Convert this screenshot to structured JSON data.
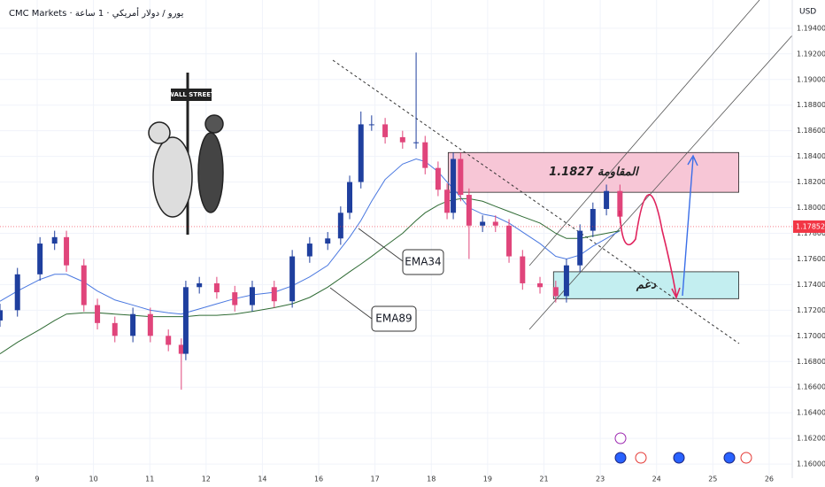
{
  "chart_data": {
    "type": "candlestick",
    "header": "CMC Markets · يورو / دولار أمريكي · 1 ساعة",
    "currency": "USD",
    "illustration_sign": "WALL STREET",
    "up_color": "#1f3f9e",
    "down_color": "#e0457b",
    "grid": true,
    "xlim": [
      -0.66,
      13.41
    ],
    "ylim": [
      1.1589,
      1.1962
    ],
    "xticks": [
      {
        "value": 0,
        "label": "9"
      },
      {
        "value": 1,
        "label": "10"
      },
      {
        "value": 2,
        "label": "11"
      },
      {
        "value": 3,
        "label": "12"
      },
      {
        "value": 4,
        "label": "14"
      },
      {
        "value": 5,
        "label": "16"
      },
      {
        "value": 6,
        "label": "17"
      },
      {
        "value": 7,
        "label": "18"
      },
      {
        "value": 8,
        "label": "19"
      },
      {
        "value": 9,
        "label": "21"
      },
      {
        "value": 10,
        "label": "23"
      },
      {
        "value": 11,
        "label": "24"
      },
      {
        "value": 12,
        "label": "25"
      },
      {
        "value": 13,
        "label": "26"
      }
    ],
    "yticks": [
      {
        "value": 1.16,
        "label": "1.16000"
      },
      {
        "value": 1.162,
        "label": "1.16200"
      },
      {
        "value": 1.164,
        "label": "1.16400"
      },
      {
        "value": 1.166,
        "label": "1.16600"
      },
      {
        "value": 1.168,
        "label": "1.16800"
      },
      {
        "value": 1.17,
        "label": "1.17000"
      },
      {
        "value": 1.172,
        "label": "1.17200"
      },
      {
        "value": 1.174,
        "label": "1.17400"
      },
      {
        "value": 1.176,
        "label": "1.17600"
      },
      {
        "value": 1.178,
        "label": "1.17800"
      },
      {
        "value": 1.18,
        "label": "1.18000"
      },
      {
        "value": 1.182,
        "label": "1.18200"
      },
      {
        "value": 1.184,
        "label": "1.18400"
      },
      {
        "value": 1.186,
        "label": "1.18600"
      },
      {
        "value": 1.188,
        "label": "1.18800"
      },
      {
        "value": 1.19,
        "label": "1.19000"
      },
      {
        "value": 1.192,
        "label": "1.19200"
      },
      {
        "value": 1.194,
        "label": "1.19400"
      }
    ],
    "last_price": {
      "value": 1.17852,
      "label": "1.17852",
      "color": "#f23645"
    },
    "x": [
      -0.66,
      -0.35,
      0.05,
      0.31,
      0.52,
      0.83,
      1.07,
      1.38,
      1.7,
      2.01,
      2.33,
      2.56,
      2.64,
      2.88,
      3.19,
      3.51,
      3.82,
      4.21,
      4.53,
      4.84,
      5.16,
      5.39,
      5.55,
      5.75,
      5.94,
      6.18,
      6.49,
      6.73,
      6.89,
      7.12,
      7.28,
      7.39,
      7.52,
      7.67,
      7.91,
      8.14,
      8.38,
      8.62,
      8.93,
      9.21,
      9.4,
      9.64,
      9.87,
      10.11,
      10.35
    ],
    "open": [
      1.1712,
      1.172,
      1.1748,
      1.1772,
      1.1777,
      1.1755,
      1.1724,
      1.171,
      1.17,
      1.1717,
      1.17,
      1.1693,
      1.1686,
      1.1738,
      1.1741,
      1.1734,
      1.1724,
      1.1738,
      1.1727,
      1.1762,
      1.1772,
      1.1776,
      1.1796,
      1.182,
      1.1865,
      1.1865,
      1.1855,
      1.1851,
      1.1851,
      1.1831,
      1.1814,
      1.1796,
      1.1838,
      1.181,
      1.1786,
      1.1789,
      1.1786,
      1.1762,
      1.1741,
      1.1738,
      1.1731,
      1.1755,
      1.1782,
      1.1799,
      1.1813
    ],
    "high": [
      1.1725,
      1.1753,
      1.1777,
      1.1782,
      1.1782,
      1.176,
      1.1729,
      1.1715,
      1.1722,
      1.1722,
      1.1705,
      1.1698,
      1.1743,
      1.1746,
      1.1746,
      1.1739,
      1.1743,
      1.1743,
      1.1767,
      1.1777,
      1.1781,
      1.1801,
      1.1825,
      1.1875,
      1.1872,
      1.187,
      1.186,
      1.1921,
      1.1856,
      1.1836,
      1.1819,
      1.1843,
      1.1843,
      1.1815,
      1.1794,
      1.1794,
      1.1791,
      1.1767,
      1.1746,
      1.1743,
      1.176,
      1.1787,
      1.1804,
      1.1818,
      1.1818
    ],
    "low": [
      1.1707,
      1.1715,
      1.1743,
      1.1767,
      1.175,
      1.1719,
      1.1705,
      1.1695,
      1.1695,
      1.1695,
      1.1688,
      1.1658,
      1.1681,
      1.1733,
      1.1729,
      1.1719,
      1.1719,
      1.1722,
      1.1722,
      1.1757,
      1.1767,
      1.1771,
      1.1791,
      1.1815,
      1.186,
      1.185,
      1.1846,
      1.1846,
      1.1826,
      1.1809,
      1.1791,
      1.1791,
      1.1805,
      1.176,
      1.1781,
      1.1781,
      1.1757,
      1.1736,
      1.1733,
      1.1726,
      1.1726,
      1.175,
      1.1777,
      1.1794,
      1.1788
    ],
    "close": [
      1.172,
      1.1748,
      1.1772,
      1.1777,
      1.1755,
      1.1724,
      1.171,
      1.17,
      1.1717,
      1.17,
      1.1693,
      1.1686,
      1.1738,
      1.1741,
      1.1734,
      1.1724,
      1.1738,
      1.1727,
      1.1762,
      1.1772,
      1.1776,
      1.1796,
      1.182,
      1.1865,
      1.1865,
      1.1855,
      1.1851,
      1.1851,
      1.1831,
      1.1814,
      1.1796,
      1.1838,
      1.181,
      1.1786,
      1.1789,
      1.1786,
      1.1762,
      1.1741,
      1.1738,
      1.1731,
      1.1755,
      1.1782,
      1.1799,
      1.1813,
      1.1793
    ],
    "overlays": [
      {
        "label": "EMA34",
        "color": "#4a78e0",
        "values": [
          1.1727,
          1.1735,
          1.1744,
          1.1748,
          1.1748,
          1.1742,
          1.1735,
          1.1728,
          1.1724,
          1.172,
          1.1718,
          1.1717,
          1.1718,
          1.1721,
          1.1725,
          1.1729,
          1.1732,
          1.1734,
          1.1739,
          1.1746,
          1.1755,
          1.1768,
          1.1777,
          1.179,
          1.1805,
          1.1822,
          1.1834,
          1.1838,
          1.1836,
          1.1828,
          1.182,
          1.1815,
          1.1808,
          1.18,
          1.1795,
          1.1793,
          1.1788,
          1.1781,
          1.1772,
          1.1762,
          1.176,
          1.1763,
          1.177,
          1.1776,
          1.1782
        ]
      },
      {
        "label": "EMA89",
        "color": "#2f6b34",
        "values": [
          1.1686,
          1.1695,
          1.1705,
          1.1712,
          1.1717,
          1.1718,
          1.1718,
          1.1717,
          1.1716,
          1.1715,
          1.1715,
          1.1715,
          1.1715,
          1.1716,
          1.1716,
          1.1717,
          1.1719,
          1.1722,
          1.1725,
          1.173,
          1.1738,
          1.1745,
          1.175,
          1.1756,
          1.1762,
          1.177,
          1.178,
          1.179,
          1.1796,
          1.1802,
          1.1805,
          1.1806,
          1.1807,
          1.1807,
          1.1805,
          1.1801,
          1.1797,
          1.1793,
          1.1788,
          1.178,
          1.1776,
          1.1776,
          1.1778,
          1.178,
          1.1782
        ]
      }
    ],
    "zones": [
      {
        "label": "المقاومة 1.1827",
        "x": [
          7.3,
          12.46
        ],
        "top": 1.1843,
        "bottom": 1.1812,
        "color": "#f7c6d6"
      },
      {
        "label": "دعم",
        "x": [
          9.17,
          12.46
        ],
        "top": 1.175,
        "bottom": 1.1729,
        "color": "#c3eef0"
      }
    ]
  }
}
